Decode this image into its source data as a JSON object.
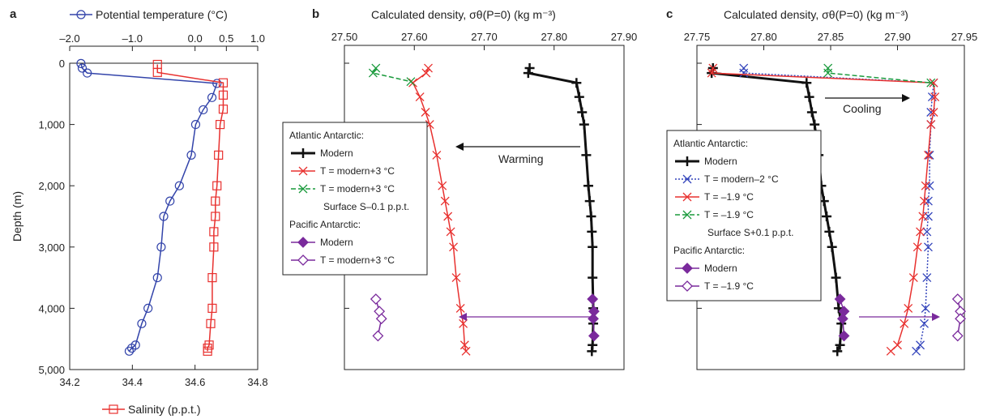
{
  "panel_labels": [
    "a",
    "b",
    "c"
  ],
  "colors": {
    "axis": "#222222",
    "modern_atlantic": "#111111",
    "warm": "#e8312f",
    "surface": "#1a9a3c",
    "pacific": "#7a2a9c",
    "cool": "#3344bb",
    "temperature": "#3344aa",
    "salinity": "#e8312f"
  },
  "annotations": {
    "warming": "Warming",
    "cooling": "Cooling"
  },
  "legend_b": [
    {
      "kind": "header",
      "text": "Atlantic Antarctic:"
    },
    {
      "kind": "entry",
      "text": "Modern",
      "color": "#111111",
      "marker": "plus",
      "dash": "",
      "bold": true
    },
    {
      "kind": "entry",
      "text": "T = modern+3 °C",
      "color": "#e8312f",
      "marker": "x",
      "dash": ""
    },
    {
      "kind": "entry",
      "text": "T = modern+3 °C",
      "color": "#1a9a3c",
      "marker": "x",
      "dash": "6,3"
    },
    {
      "kind": "sub",
      "text": "Surface S–0.1 p.p.t."
    },
    {
      "kind": "header",
      "text": "Pacific Antarctic:"
    },
    {
      "kind": "entry",
      "text": "Modern",
      "color": "#7a2a9c",
      "marker": "filled-diamond",
      "dash": ""
    },
    {
      "kind": "entry",
      "text": "T = modern+3 °C",
      "color": "#7a2a9c",
      "marker": "open-diamond",
      "dash": ""
    }
  ],
  "legend_c": [
    {
      "kind": "header",
      "text": "Atlantic Antarctic:"
    },
    {
      "kind": "entry",
      "text": "Modern",
      "color": "#111111",
      "marker": "plus",
      "dash": "",
      "bold": true
    },
    {
      "kind": "entry",
      "text": "T = modern–2 °C",
      "color": "#3344bb",
      "marker": "x",
      "dash": "2,2"
    },
    {
      "kind": "entry",
      "text": "T = –1.9 °C",
      "color": "#e8312f",
      "marker": "x",
      "dash": ""
    },
    {
      "kind": "entry",
      "text": "T = –1.9 °C",
      "color": "#1a9a3c",
      "marker": "x",
      "dash": "6,3"
    },
    {
      "kind": "sub",
      "text": "Surface S+0.1 p.p.t."
    },
    {
      "kind": "header",
      "text": "Pacific Antarctic:"
    },
    {
      "kind": "entry",
      "text": "Modern",
      "color": "#7a2a9c",
      "marker": "filled-diamond",
      "dash": ""
    },
    {
      "kind": "entry",
      "text": "T = –1.9 °C",
      "color": "#7a2a9c",
      "marker": "open-diamond",
      "dash": ""
    }
  ],
  "chart_data": [
    {
      "panel": "a",
      "type": "line",
      "ylabel": "Depth (m)",
      "ylim": [
        5000,
        0
      ],
      "yticks": [
        0,
        1000,
        2000,
        3000,
        4000,
        5000
      ],
      "yticklabels": [
        "0",
        "1,000",
        "2,000",
        "3,000",
        "4,000",
        "5,000"
      ],
      "top_axis": {
        "label": "Potential temperature (°C)",
        "lim": [
          -2.0,
          1.0
        ],
        "ticks": [
          -2.0,
          -1.0,
          0,
          0.5,
          1.0
        ],
        "ticklabels": [
          "–2.0",
          "–1.0",
          "0.0",
          "0.5",
          "1.0"
        ]
      },
      "bottom_axis": {
        "label": "Salinity (p.p.t.)",
        "lim": [
          34.2,
          34.8
        ],
        "ticks": [
          34.2,
          34.4,
          34.6,
          34.8
        ],
        "ticklabels": [
          "34.2",
          "34.4",
          "34.6",
          "34.8"
        ]
      },
      "series": [
        {
          "name": "Potential temperature (°C)",
          "axis": "top",
          "marker": "circle",
          "color": "#3344aa",
          "x": [
            -1.82,
            -1.8,
            -1.72,
            0.35,
            0.27,
            0.13,
            0.01,
            -0.06,
            -0.25,
            -0.4,
            -0.5,
            -0.54,
            -0.6,
            -0.75,
            -0.85,
            -0.95,
            -1.01,
            -1.05
          ],
          "y": [
            5,
            80,
            160,
            330,
            560,
            760,
            1000,
            1500,
            2000,
            2250,
            2500,
            3000,
            3500,
            4000,
            4250,
            4600,
            4650,
            4700
          ]
        },
        {
          "name": "Salinity (p.p.t.)",
          "axis": "bottom",
          "marker": "square",
          "color": "#e8312f",
          "x": [
            34.48,
            34.48,
            34.69,
            34.69,
            34.69,
            34.68,
            34.675,
            34.67,
            34.665,
            34.665,
            34.66,
            34.66,
            34.655,
            34.655,
            34.65,
            34.645,
            34.64,
            34.64
          ],
          "y": [
            20,
            150,
            320,
            520,
            750,
            1000,
            1500,
            2000,
            2250,
            2500,
            2750,
            3000,
            3500,
            4000,
            4250,
            4600,
            4650,
            4700
          ]
        }
      ]
    },
    {
      "panel": "b",
      "type": "line",
      "xlabel": "Calculated density, σθ(P=0) (kg m⁻³)",
      "xlim": [
        27.5,
        27.9
      ],
      "xticks": [
        27.5,
        27.6,
        27.7,
        27.8,
        27.9
      ],
      "xticklabels": [
        "27.50",
        "27.60",
        "27.70",
        "27.80",
        "27.90"
      ],
      "ylim": [
        5000,
        0
      ],
      "series": [
        {
          "name": "Atlantic Antarctic: Modern",
          "color": "#111111",
          "marker": "plus",
          "dash": "",
          "width": 3,
          "x": [
            27.765,
            27.763,
            27.832,
            27.836,
            27.84,
            27.843,
            27.846,
            27.849,
            27.851,
            27.853,
            27.854,
            27.855,
            27.855,
            27.856,
            27.856,
            27.855,
            27.854
          ],
          "y": [
            80,
            160,
            320,
            550,
            800,
            1000,
            1500,
            2000,
            2250,
            2500,
            2750,
            3000,
            3500,
            4000,
            4250,
            4600,
            4700
          ]
        },
        {
          "name": "T = modern+3 °C",
          "color": "#e8312f",
          "marker": "x",
          "dash": "",
          "width": 1.5,
          "x": [
            27.62,
            27.617,
            27.598,
            27.608,
            27.616,
            27.622,
            27.632,
            27.64,
            27.644,
            27.648,
            27.652,
            27.656,
            27.66,
            27.666,
            27.67,
            27.672,
            27.674
          ],
          "y": [
            80,
            160,
            320,
            550,
            800,
            1000,
            1500,
            2000,
            2250,
            2500,
            2750,
            3000,
            3500,
            4000,
            4250,
            4600,
            4700
          ]
        },
        {
          "name": "T = modern+3 °C (Surface S–0.1 p.p.t.)",
          "color": "#1a9a3c",
          "marker": "x",
          "dash": "6,3",
          "width": 1.5,
          "x": [
            27.545,
            27.541,
            27.595
          ],
          "y": [
            80,
            160,
            300
          ]
        },
        {
          "name": "Pacific Antarctic: Modern",
          "color": "#7a2a9c",
          "marker": "filled-diamond",
          "dash": "",
          "width": 1.5,
          "x": [
            27.855,
            27.857,
            27.856,
            27.857
          ],
          "y": [
            3850,
            4050,
            4170,
            4450
          ]
        },
        {
          "name": "Pacific Antarctic: T = modern+3 °C",
          "color": "#7a2a9c",
          "marker": "open-diamond",
          "dash": "",
          "width": 1.5,
          "x": [
            27.545,
            27.55,
            27.553,
            27.548
          ],
          "y": [
            3850,
            4050,
            4170,
            4450
          ]
        }
      ]
    },
    {
      "panel": "c",
      "type": "line",
      "xlabel": "Calculated density, σθ(P=0) (kg m⁻³)",
      "xlim": [
        27.75,
        27.95
      ],
      "xticks": [
        27.75,
        27.8,
        27.85,
        27.9,
        27.95
      ],
      "xticklabels": [
        "27.75",
        "27.80",
        "27.85",
        "27.90",
        "27.95"
      ],
      "ylim": [
        5000,
        0
      ],
      "series": [
        {
          "name": "Atlantic Antarctic: Modern",
          "color": "#111111",
          "marker": "plus",
          "dash": "",
          "width": 3,
          "x": [
            27.762,
            27.761,
            27.832,
            27.834,
            27.836,
            27.838,
            27.841,
            27.843,
            27.845,
            27.847,
            27.849,
            27.851,
            27.854,
            27.856,
            27.858,
            27.857,
            27.855
          ],
          "y": [
            80,
            160,
            320,
            550,
            800,
            1000,
            1500,
            2000,
            2250,
            2500,
            2750,
            3000,
            3500,
            4000,
            4250,
            4600,
            4700
          ]
        },
        {
          "name": "T = modern–2 °C",
          "color": "#3344bb",
          "marker": "x",
          "dash": "2,2",
          "width": 1.5,
          "x": [
            27.785,
            27.785,
            27.927,
            27.926,
            27.925,
            27.925,
            27.924,
            27.924,
            27.923,
            27.923,
            27.922,
            27.923,
            27.922,
            27.921,
            27.92,
            27.917,
            27.914
          ],
          "y": [
            80,
            160,
            320,
            550,
            800,
            1000,
            1500,
            2000,
            2250,
            2500,
            2750,
            3000,
            3500,
            4000,
            4250,
            4600,
            4700
          ]
        },
        {
          "name": "T = –1.9 °C",
          "color": "#e8312f",
          "marker": "x",
          "dash": "",
          "width": 1.5,
          "x": [
            27.762,
            27.761,
            27.927,
            27.928,
            27.927,
            27.925,
            27.923,
            27.921,
            27.92,
            27.919,
            27.917,
            27.915,
            27.912,
            27.908,
            27.905,
            27.9,
            27.895
          ],
          "y": [
            80,
            160,
            320,
            550,
            800,
            1000,
            1500,
            2000,
            2250,
            2500,
            2750,
            3000,
            3500,
            4000,
            4250,
            4600,
            4700
          ]
        },
        {
          "name": "T = –1.9 °C (Surface S+0.1 p.p.t.)",
          "color": "#1a9a3c",
          "marker": "x",
          "dash": "6,3",
          "width": 1.5,
          "x": [
            27.848,
            27.848,
            27.925
          ],
          "y": [
            80,
            160,
            320
          ]
        },
        {
          "name": "Pacific Antarctic: Modern",
          "color": "#7a2a9c",
          "marker": "filled-diamond",
          "dash": "",
          "width": 1.5,
          "x": [
            27.857,
            27.86,
            27.859,
            27.86
          ],
          "y": [
            3850,
            4050,
            4170,
            4450
          ]
        },
        {
          "name": "Pacific Antarctic: T = –1.9 °C",
          "color": "#7a2a9c",
          "marker": "open-diamond",
          "dash": "",
          "width": 1.5,
          "x": [
            27.945,
            27.947,
            27.947,
            27.945
          ],
          "y": [
            3850,
            4050,
            4170,
            4450
          ]
        }
      ]
    }
  ]
}
